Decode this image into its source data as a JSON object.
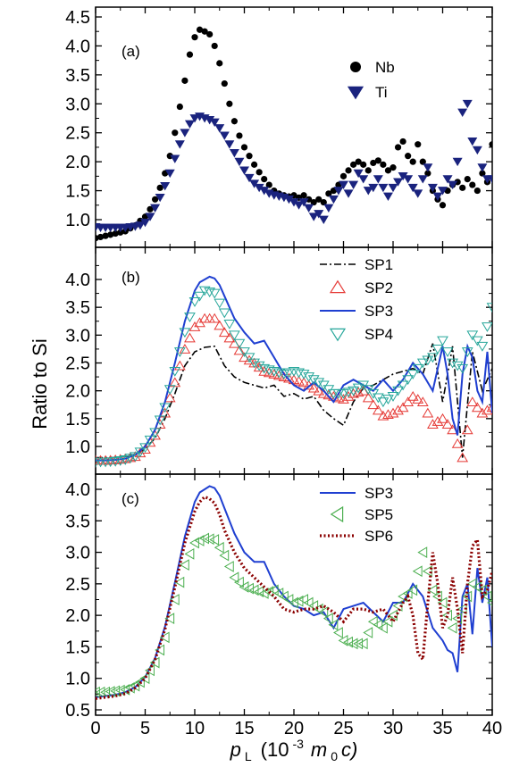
{
  "chart_data": [
    {
      "panel": "(a)",
      "type": "scatter",
      "xlim": [
        0,
        40
      ],
      "ylim": [
        0.5,
        4.5
      ],
      "yticks": [
        "1.0",
        "1.5",
        "2.0",
        "2.5",
        "3.0",
        "3.5",
        "4.0",
        "4.5"
      ],
      "legend_position": "top-right",
      "series": [
        {
          "name": "Nb",
          "marker": "circle",
          "color": "#000000",
          "x": [
            0,
            0.5,
            1,
            1.5,
            2,
            2.5,
            3,
            3.5,
            4,
            4.5,
            5,
            5.5,
            6,
            6.5,
            7,
            7.5,
            8,
            8.5,
            9,
            9.5,
            10,
            10.5,
            11,
            11.5,
            12,
            12.5,
            13,
            13.5,
            14,
            14.5,
            15,
            15.5,
            16,
            16.5,
            17,
            17.5,
            18,
            18.5,
            19,
            19.5,
            20,
            20.5,
            21,
            21.5,
            22,
            22.5,
            23,
            23.5,
            24,
            24.5,
            25,
            25.5,
            26,
            26.5,
            27,
            27.5,
            28,
            28.5,
            29,
            29.5,
            30,
            30.5,
            31,
            31.5,
            32,
            32.5,
            33,
            33.5,
            34,
            34.5,
            35,
            35.5,
            36,
            36.5,
            37,
            37.5,
            38,
            38.5,
            39,
            39.5,
            40
          ],
          "y": [
            0.68,
            0.7,
            0.72,
            0.74,
            0.76,
            0.78,
            0.8,
            0.85,
            0.9,
            0.98,
            1.05,
            1.18,
            1.35,
            1.55,
            1.8,
            2.1,
            2.5,
            2.95,
            3.4,
            3.85,
            4.15,
            4.28,
            4.25,
            4.2,
            4.0,
            3.7,
            3.35,
            3.0,
            2.7,
            2.45,
            2.25,
            2.1,
            1.95,
            1.82,
            1.7,
            1.6,
            1.5,
            1.45,
            1.42,
            1.4,
            1.42,
            1.38,
            1.42,
            1.35,
            1.3,
            1.35,
            1.3,
            1.45,
            1.5,
            1.6,
            1.75,
            1.85,
            1.95,
            2.0,
            1.95,
            1.85,
            1.98,
            2.02,
            1.95,
            1.85,
            1.9,
            2.25,
            2.35,
            2.1,
            2.0,
            2.3,
            2.0,
            1.8,
            1.5,
            1.35,
            1.25,
            1.5,
            1.6,
            1.65,
            1.55,
            1.7,
            1.6,
            1.5,
            1.8,
            1.65,
            2.3
          ]
        },
        {
          "name": "Ti",
          "marker": "triangle-down",
          "color": "#1a237e",
          "x": [
            0,
            0.5,
            1,
            1.5,
            2,
            2.5,
            3,
            3.5,
            4,
            4.5,
            5,
            5.5,
            6,
            6.5,
            7,
            7.5,
            8,
            8.5,
            9,
            9.5,
            10,
            10.5,
            11,
            11.5,
            12,
            12.5,
            13,
            13.5,
            14,
            14.5,
            15,
            15.5,
            16,
            16.5,
            17,
            17.5,
            18,
            18.5,
            19,
            19.5,
            20,
            20.5,
            21,
            21.5,
            22,
            22.5,
            23,
            23.5,
            24,
            24.5,
            25,
            25.5,
            26,
            26.5,
            27,
            27.5,
            28,
            28.5,
            29,
            29.5,
            30,
            30.5,
            31,
            31.5,
            32,
            32.5,
            33,
            33.5,
            34,
            34.5,
            35,
            35.5,
            36,
            36.5,
            37,
            37.5,
            38,
            38.5,
            39,
            39.5,
            40
          ],
          "y": [
            0.87,
            0.86,
            0.86,
            0.86,
            0.86,
            0.86,
            0.86,
            0.87,
            0.88,
            0.9,
            0.95,
            1.05,
            1.2,
            1.38,
            1.58,
            1.8,
            2.05,
            2.3,
            2.5,
            2.65,
            2.75,
            2.78,
            2.75,
            2.72,
            2.68,
            2.58,
            2.45,
            2.3,
            2.15,
            2.0,
            1.85,
            1.72,
            1.62,
            1.55,
            1.5,
            1.45,
            1.42,
            1.4,
            1.38,
            1.35,
            1.3,
            1.25,
            1.3,
            1.2,
            1.05,
            1.1,
            1.0,
            1.2,
            1.35,
            1.5,
            1.6,
            1.45,
            1.6,
            1.8,
            1.7,
            1.5,
            1.55,
            1.7,
            1.55,
            1.4,
            1.55,
            1.65,
            1.75,
            1.7,
            1.55,
            1.45,
            1.7,
            1.9,
            1.55,
            1.4,
            1.5,
            1.7,
            1.6,
            2.0,
            2.85,
            3.0,
            2.35,
            2.2,
            1.9,
            1.7,
            1.7
          ]
        }
      ]
    },
    {
      "panel": "(b)",
      "type": "line",
      "xlim": [
        0,
        40
      ],
      "ylim": [
        0.5,
        4.5
      ],
      "yticks": [
        "1.0",
        "1.5",
        "2.0",
        "2.5",
        "3.0",
        "3.5",
        "4.0"
      ],
      "legend_position": "top-right",
      "series": [
        {
          "name": "SP1",
          "style": "dashdot",
          "color": "#000000",
          "x": [
            0,
            1,
            2,
            3,
            4,
            5,
            6,
            7,
            8,
            9,
            10,
            11,
            12,
            13,
            14,
            15,
            16,
            17,
            18,
            19,
            20,
            21,
            22,
            23,
            24,
            25,
            26,
            27,
            28,
            29,
            30,
            31,
            32,
            33,
            34,
            35,
            36,
            37,
            38,
            39,
            40
          ],
          "y": [
            0.8,
            0.8,
            0.8,
            0.82,
            0.85,
            0.95,
            1.15,
            1.5,
            1.95,
            2.45,
            2.7,
            2.78,
            2.8,
            2.45,
            2.25,
            2.15,
            2.1,
            2.05,
            2.1,
            1.9,
            1.95,
            1.85,
            1.9,
            1.65,
            1.5,
            1.38,
            1.8,
            2.05,
            2.1,
            2.2,
            2.3,
            2.35,
            2.4,
            2.3,
            2.85,
            1.8,
            2.8,
            0.8,
            2.7,
            2.0,
            2.4
          ]
        },
        {
          "name": "SP2",
          "style": "triangle-up-open",
          "color": "#e53935",
          "x": [
            0,
            1,
            2,
            3,
            4,
            5,
            6,
            7,
            8,
            9,
            10,
            11,
            12,
            13,
            14,
            15,
            16,
            17,
            18,
            19,
            20,
            21,
            22,
            23,
            24,
            25,
            26,
            27,
            28,
            29,
            30,
            31,
            32,
            33,
            34,
            35,
            36,
            37,
            38,
            39,
            40
          ],
          "y": [
            0.75,
            0.75,
            0.76,
            0.78,
            0.82,
            0.95,
            1.2,
            1.6,
            2.15,
            2.75,
            3.15,
            3.3,
            3.3,
            3.05,
            2.85,
            2.6,
            2.5,
            2.35,
            2.3,
            2.25,
            2.2,
            2.15,
            2.05,
            1.95,
            1.9,
            1.85,
            1.95,
            2.0,
            1.75,
            1.55,
            1.6,
            1.7,
            1.9,
            1.8,
            1.4,
            1.5,
            1.3,
            0.8,
            1.8,
            1.6,
            1.7
          ]
        },
        {
          "name": "SP3",
          "style": "solid",
          "color": "#1f3fd1",
          "x": [
            0,
            1,
            2,
            3,
            4,
            5,
            6,
            7,
            8,
            9,
            10,
            10.5,
            11,
            11.5,
            12,
            12.5,
            13,
            14,
            15,
            16,
            17,
            18,
            19,
            20,
            21,
            22,
            23,
            24,
            25,
            26,
            27,
            28,
            29,
            30,
            31,
            32,
            33,
            34,
            35,
            35.5,
            36,
            36.5,
            37,
            37.5,
            38,
            38.5,
            39,
            39.5,
            40
          ],
          "y": [
            0.75,
            0.75,
            0.76,
            0.78,
            0.85,
            1.0,
            1.3,
            1.8,
            2.5,
            3.25,
            3.8,
            3.95,
            4.0,
            4.05,
            4.02,
            3.9,
            3.7,
            3.3,
            3.05,
            2.85,
            2.9,
            2.6,
            2.3,
            2.1,
            2.0,
            2.15,
            2.0,
            1.8,
            2.1,
            2.2,
            2.1,
            2.0,
            2.2,
            2.0,
            2.2,
            2.5,
            2.3,
            2.0,
            2.8,
            2.3,
            1.5,
            1.2,
            2.3,
            2.8,
            2.6,
            2.0,
            1.8,
            2.7,
            1.6
          ]
        },
        {
          "name": "SP4",
          "style": "triangle-down-open",
          "color": "#26a69a",
          "x": [
            0,
            1,
            2,
            3,
            4,
            5,
            6,
            7,
            8,
            9,
            10,
            11,
            12,
            13,
            14,
            15,
            16,
            17,
            18,
            19,
            20,
            21,
            22,
            23,
            24,
            25,
            26,
            27,
            28,
            29,
            30,
            31,
            32,
            33,
            34,
            35,
            36,
            37,
            38,
            39,
            40
          ],
          "y": [
            0.72,
            0.72,
            0.73,
            0.76,
            0.82,
            0.98,
            1.25,
            1.7,
            2.35,
            3.05,
            3.6,
            3.8,
            3.75,
            3.4,
            3.0,
            2.7,
            2.5,
            2.4,
            2.35,
            2.3,
            2.35,
            2.3,
            2.2,
            2.1,
            1.95,
            1.95,
            2.0,
            2.1,
            1.95,
            1.8,
            1.9,
            2.1,
            2.3,
            2.5,
            2.6,
            2.9,
            2.5,
            2.4,
            3.0,
            2.8,
            3.5
          ]
        }
      ]
    },
    {
      "panel": "(c)",
      "type": "line",
      "xlim": [
        0,
        40
      ],
      "ylim": [
        0.5,
        4.5
      ],
      "yticks": [
        "0.5",
        "1.0",
        "1.5",
        "2.0",
        "2.5",
        "3.0",
        "3.5",
        "4.0"
      ],
      "xticks": [
        "0",
        "5",
        "10",
        "15",
        "20",
        "25",
        "30",
        "35",
        "40"
      ],
      "legend_position": "top-right",
      "series": [
        {
          "name": "SP3",
          "style": "solid",
          "color": "#1f3fd1",
          "x": [
            0,
            1,
            2,
            3,
            4,
            5,
            6,
            7,
            8,
            9,
            10,
            10.5,
            11,
            11.5,
            12,
            12.5,
            13,
            14,
            15,
            16,
            17,
            18,
            19,
            20,
            21,
            22,
            23,
            24,
            25,
            26,
            27,
            28,
            29,
            30,
            31,
            32,
            33,
            34,
            35,
            35.5,
            36,
            36.5,
            37,
            37.5,
            38,
            38.5,
            39,
            39.5,
            40
          ],
          "y": [
            0.7,
            0.72,
            0.74,
            0.78,
            0.86,
            1.02,
            1.32,
            1.82,
            2.52,
            3.25,
            3.8,
            3.95,
            4.0,
            4.05,
            4.02,
            3.9,
            3.7,
            3.3,
            3.0,
            2.85,
            2.85,
            2.5,
            2.3,
            2.15,
            2.1,
            2.0,
            2.05,
            1.8,
            2.1,
            2.15,
            2.2,
            2.05,
            1.9,
            2.2,
            2.2,
            2.5,
            2.3,
            1.8,
            1.6,
            1.45,
            1.4,
            1.1,
            2.3,
            2.5,
            1.7,
            2.75,
            2.2,
            2.6,
            1.5
          ]
        },
        {
          "name": "SP5",
          "style": "triangle-left-open",
          "color": "#4caf50",
          "x": [
            0,
            1,
            2,
            3,
            4,
            5,
            6,
            7,
            8,
            9,
            10,
            11,
            12,
            13,
            14,
            15,
            16,
            17,
            18,
            19,
            20,
            21,
            22,
            23,
            24,
            25,
            26,
            27,
            28,
            29,
            30,
            31,
            32,
            33,
            34,
            35,
            36,
            37,
            38,
            39,
            40
          ],
          "y": [
            0.78,
            0.78,
            0.8,
            0.82,
            0.88,
            1.0,
            1.25,
            1.65,
            2.25,
            2.8,
            3.15,
            3.22,
            3.2,
            2.95,
            2.6,
            2.45,
            2.4,
            2.35,
            2.4,
            2.3,
            2.2,
            2.25,
            2.15,
            2.05,
            1.85,
            1.6,
            1.55,
            1.55,
            1.9,
            1.8,
            2.0,
            2.3,
            2.4,
            3.0,
            2.4,
            2.2,
            1.8,
            2.1,
            2.5,
            2.4,
            2.2
          ]
        },
        {
          "name": "SP6",
          "style": "dotted",
          "color": "#8b0000",
          "x": [
            0,
            1,
            2,
            3,
            4,
            5,
            6,
            7,
            8,
            9,
            10,
            10.5,
            11,
            11.5,
            12,
            12.5,
            13,
            14,
            15,
            16,
            17,
            18,
            19,
            20,
            21,
            22,
            23,
            24,
            25,
            26,
            27,
            28,
            29,
            30,
            31,
            31.5,
            32,
            32.5,
            33,
            33.5,
            34,
            34.5,
            35,
            35.5,
            36,
            36.5,
            37,
            37.5,
            38,
            38.5,
            39,
            39.5,
            40
          ],
          "y": [
            0.68,
            0.7,
            0.72,
            0.76,
            0.85,
            1.0,
            1.3,
            1.78,
            2.45,
            3.15,
            3.65,
            3.8,
            3.88,
            3.85,
            3.78,
            3.6,
            3.35,
            3.0,
            2.75,
            2.6,
            2.45,
            2.3,
            2.1,
            2.05,
            2.1,
            2.1,
            2.15,
            2.05,
            1.9,
            2.1,
            2.1,
            2.05,
            2.1,
            1.9,
            2.2,
            2.3,
            2.0,
            1.4,
            1.3,
            2.2,
            3.0,
            2.5,
            1.8,
            2.0,
            2.6,
            2.1,
            1.4,
            2.5,
            3.1,
            3.2,
            2.3,
            2.4,
            2.7
          ]
        }
      ]
    }
  ],
  "axes": {
    "ylabel": "Ratio to Si",
    "xlabel_main": "p",
    "xlabel_sub": "L",
    "xlabel_units_prefix": "(10",
    "xlabel_units_exp": "-3",
    "xlabel_units_m": "m",
    "xlabel_units_msub": "0",
    "xlabel_units_suffix": "c)"
  }
}
